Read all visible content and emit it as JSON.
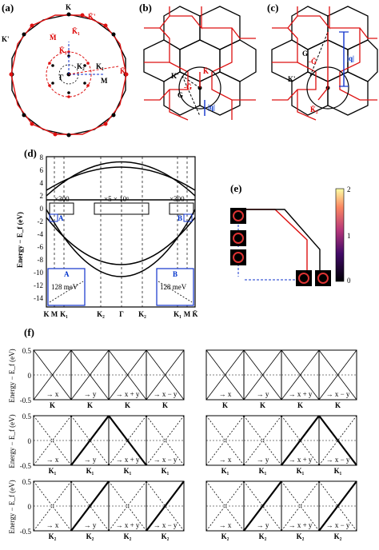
{
  "panels": {
    "a": {
      "label": "(a)",
      "points": [
        "K",
        "K̄'",
        "K'",
        "M̄",
        "K̄₁",
        "K̄₂",
        "K₂",
        "K₁",
        "Γ",
        "M",
        "K̄"
      ]
    },
    "b": {
      "label": "(b)",
      "points": [
        "K̄",
        "K'",
        "G",
        "-Ḡ",
        "|q|"
      ]
    },
    "c": {
      "label": "(c)",
      "points": [
        "G",
        "-Ḡ",
        "|q|",
        "K'",
        "K̄₂"
      ]
    },
    "d": {
      "label": "(d)",
      "ylabel": "Energy − E_f (eV)",
      "yticks": [
        "8",
        "6",
        "4",
        "2",
        "0",
        "-2",
        "-4",
        "-6",
        "-8",
        "-10",
        "-12",
        "-14"
      ],
      "xticks": [
        "K",
        "M",
        "K₁",
        "K₂",
        "Γ",
        "K₂",
        "K₁",
        "M",
        "K̄"
      ],
      "zoom_left": "×300",
      "zoom_mid": "×5 × 10⁶",
      "zoom_right": "×300",
      "box_a": "A",
      "box_b": "B",
      "inset_a_label": "A",
      "inset_b_label": "B",
      "inset_a_value": "128 meV",
      "inset_b_value": "128 meV"
    },
    "e": {
      "label": "(e)",
      "colorbar_ticks": [
        "2",
        "1",
        "0"
      ]
    },
    "f": {
      "label": "(f)",
      "ylabel": "Energy − E_f (eV)",
      "yticks": [
        "0.5",
        "0",
        "-0.5"
      ],
      "directions": [
        "→ x",
        "→ y",
        "→ x + y",
        "→ x − y"
      ],
      "row_points": [
        "K",
        "K₁",
        "K₂"
      ]
    }
  },
  "colors": {
    "red": "#dd1111",
    "blue": "#1133cc",
    "black": "#000000"
  }
}
